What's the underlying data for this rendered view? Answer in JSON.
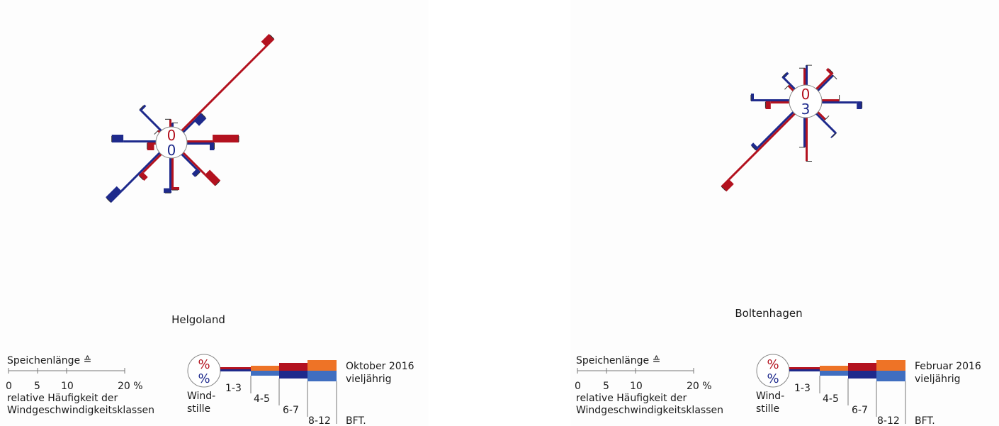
{
  "colors": {
    "current_inner": "#1e2a8c",
    "current_outer": "#b3121f",
    "climate_inner": "#3f6ec0",
    "climate_outer": "#ee7326",
    "calm_current_text": "#b3121f",
    "calm_climate_text": "#1e2a8c"
  },
  "chart_data": [
    {
      "type": "windrose",
      "station": "Helgoland",
      "current_label": "Oktober 2016",
      "climate_label": "vieljährig",
      "calm_current": "0",
      "calm_climate": "0",
      "classes": [
        "1-3",
        "4-5",
        "6-7",
        "8-12"
      ],
      "directions": [
        "N",
        "NE",
        "E",
        "SE",
        "S",
        "SW",
        "W",
        "NW"
      ],
      "current": [
        [
          1.3,
          0,
          0,
          0
        ],
        [
          20.5,
          0,
          1.9,
          0
        ],
        [
          4.4,
          0,
          4.5,
          0
        ],
        [
          5.3,
          0,
          2.6,
          0
        ],
        [
          5,
          0,
          0.5,
          0
        ],
        [
          4.4,
          0,
          0.9,
          0
        ],
        [
          0.3,
          0,
          1.2,
          0
        ],
        [
          0.4,
          0,
          0,
          0
        ]
      ],
      "climate": [
        [
          0.7,
          0,
          0,
          0
        ],
        [
          2.7,
          0,
          1.8,
          0
        ],
        [
          3.9,
          0,
          0.8,
          0
        ],
        [
          3.6,
          0,
          0.8,
          0
        ],
        [
          5.2,
          0,
          0.8,
          0
        ],
        [
          9.3,
          0,
          2.7,
          0
        ],
        [
          5.6,
          0,
          2,
          0
        ],
        [
          4.8,
          0,
          0.4,
          0
        ]
      ]
    },
    {
      "type": "windrose",
      "station": "Boltenhagen",
      "current_label": "Februar 2016",
      "climate_label": "vieljährig",
      "calm_current": "0",
      "calm_climate": "3",
      "classes": [
        "1-3",
        "4-5",
        "6-7",
        "8-12"
      ],
      "directions": [
        "N",
        "NE",
        "E",
        "SE",
        "S",
        "SW",
        "W",
        "NW"
      ],
      "current": [
        [
          2.9,
          0,
          0,
          0
        ],
        [
          3.5,
          0,
          0.5,
          0
        ],
        [
          3,
          0,
          0,
          0
        ],
        [
          1.8,
          0,
          0,
          0
        ],
        [
          7.5,
          0,
          0,
          0
        ],
        [
          16,
          0,
          1.8,
          0
        ],
        [
          3.2,
          0,
          0.9,
          0
        ],
        [
          1.2,
          0,
          0,
          0
        ]
      ],
      "climate": [
        [
          3.4,
          0,
          0,
          0
        ],
        [
          3.7,
          0,
          0,
          0
        ],
        [
          6,
          0,
          0.9,
          0
        ],
        [
          4.6,
          0,
          0.2,
          0
        ],
        [
          5.1,
          0,
          0,
          0
        ],
        [
          8.6,
          0,
          0.6,
          0
        ],
        [
          6.1,
          0,
          0.5,
          0
        ],
        [
          2.6,
          0,
          0.4,
          0
        ]
      ]
    }
  ],
  "legend": [
    {
      "scale_title": "Speichenlänge ≙",
      "ticks": [
        "0",
        "5",
        "10",
        "20 %"
      ],
      "scale_caption_1": "relative Häufigkeit der",
      "scale_caption_2": "Windgeschwindigkeitsklassen",
      "percent_symbol": "%",
      "calm_label_1": "Wind-",
      "calm_label_2": "stille",
      "classes": [
        "1-3",
        "4-5",
        "6-7",
        "8-12"
      ],
      "unit": "BFT.",
      "current_label": "Oktober 2016",
      "climate_label": "vieljährig"
    },
    {
      "scale_title": "Speichenlänge ≙",
      "ticks": [
        "0",
        "5",
        "10",
        "20 %"
      ],
      "scale_caption_1": "relative Häufigkeit der",
      "scale_caption_2": "Windgeschwindigkeitsklassen",
      "percent_symbol": "%",
      "calm_label_1": "Wind-",
      "calm_label_2": "stille",
      "classes": [
        "1-3",
        "4-5",
        "6-7",
        "8-12"
      ],
      "unit": "BFT.",
      "current_label": "Februar 2016",
      "climate_label": "vieljährig"
    }
  ]
}
